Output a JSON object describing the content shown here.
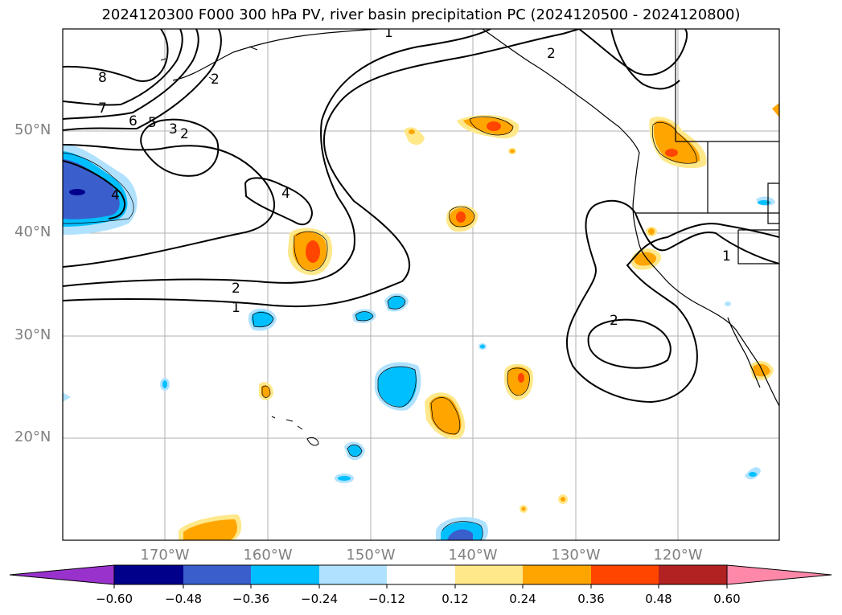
{
  "title": "2024120300 F000 300 hPa PV, river basin precipitation PC (2024120500 - 2024120800)",
  "lat_ticks": [
    "50°N",
    "40°N",
    "30°N",
    "20°N"
  ],
  "lon_ticks": [
    "170°W",
    "160°W",
    "150°W",
    "140°W",
    "130°W",
    "120°W"
  ],
  "contour_labels": [
    "1",
    "2",
    "8",
    "7",
    "6",
    "5",
    "3",
    "2",
    "4",
    "4",
    "2",
    "1",
    "2",
    "1",
    "2"
  ],
  "colorbar": {
    "ticks": [
      "−0.60",
      "−0.48",
      "−0.36",
      "−0.24",
      "−0.12",
      "0.12",
      "0.24",
      "0.36",
      "0.48",
      "0.60"
    ],
    "colors": [
      "#9932cc",
      "#00008b",
      "#3a5fcd",
      "#00bfff",
      "#b0e2ff",
      "#ffffff",
      "#ffe88a",
      "#ffa500",
      "#ff4500",
      "#b22222",
      "#ff88a8"
    ]
  }
}
